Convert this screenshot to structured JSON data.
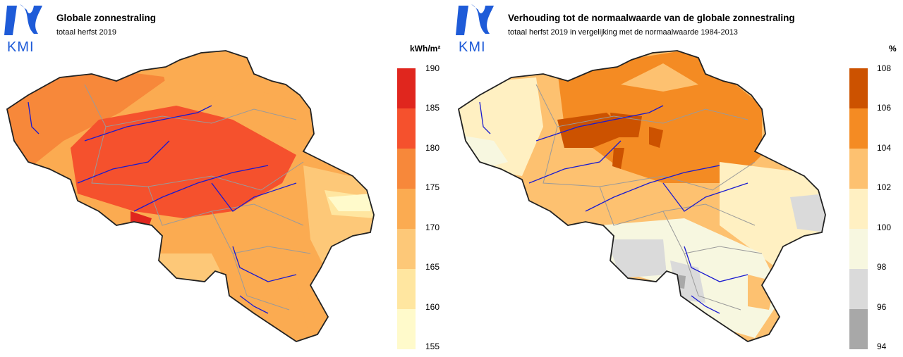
{
  "colors": {
    "logo_blue": "#1e5bd8",
    "border": "#222222",
    "province_border": "#9a9a9a",
    "river": "#1a1ad0"
  },
  "left_panel": {
    "logo_text": "KMI",
    "title": "Globale zonnestraling",
    "subtitle": "totaal herfst 2019",
    "unit": "kWh/m²",
    "legend": {
      "ticks": [
        "190",
        "185",
        "180",
        "175",
        "170",
        "165",
        "160",
        "155"
      ],
      "colors": [
        "#e0261e",
        "#f5512d",
        "#f7883a",
        "#fbab51",
        "#fdc878",
        "#ffe6a0",
        "#fffacb"
      ]
    }
  },
  "right_panel": {
    "logo_text": "KMI",
    "title": "Verhouding tot de normaalwaarde van de globale zonnestraling",
    "subtitle": "totaal herfst 2019 in vergelijking met de normaalwaarde 1984-2013",
    "unit": "%",
    "legend": {
      "ticks": [
        "108",
        "106",
        "104",
        "102",
        "100",
        "98",
        "96",
        "94"
      ],
      "colors": [
        "#cc5200",
        "#f48b23",
        "#fdc170",
        "#fff0c2",
        "#f7f7e0",
        "#dadada",
        "#a8a8a8"
      ]
    }
  }
}
